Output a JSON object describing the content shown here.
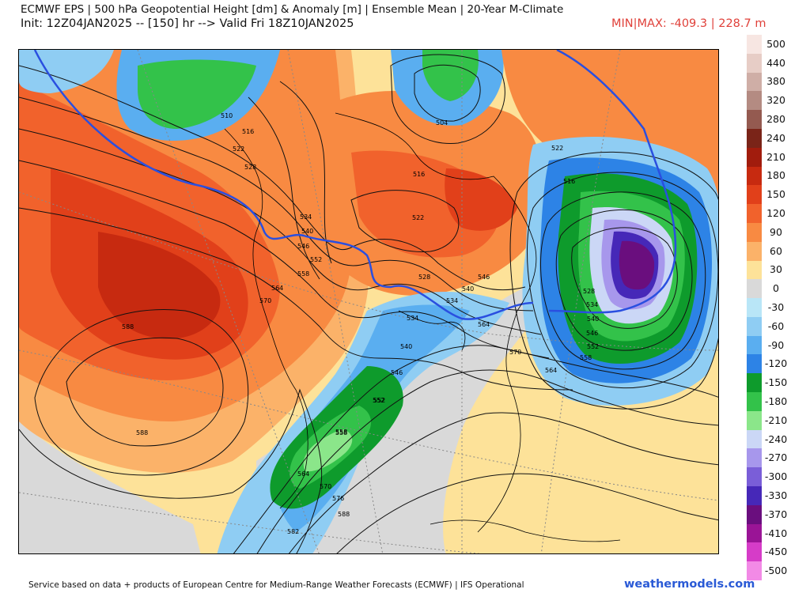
{
  "header": {
    "title": "ECMWF EPS | 500 hPa Geopotential Height [dm] & Anomaly [m] | Ensemble Mean | 20-Year M-Climate",
    "init_line": "Init: 12Z04JAN2025 -- [150] hr --> Valid Fri 18Z10JAN2025",
    "minmax": "MIN|MAX: -409.3 | 228.7 m"
  },
  "legend": {
    "items": [
      {
        "label": "500",
        "color": "#f7e6e2"
      },
      {
        "label": "440",
        "color": "#e7cdc6"
      },
      {
        "label": "380",
        "color": "#cfaea6"
      },
      {
        "label": "320",
        "color": "#b48b82"
      },
      {
        "label": "280",
        "color": "#945a50"
      },
      {
        "label": "240",
        "color": "#7a2418"
      },
      {
        "label": "210",
        "color": "#a11c0d"
      },
      {
        "label": "180",
        "color": "#c72a10"
      },
      {
        "label": "150",
        "color": "#e1401a"
      },
      {
        "label": "120",
        "color": "#f1622c"
      },
      {
        "label": "90",
        "color": "#f88a42"
      },
      {
        "label": "60",
        "color": "#fbb269"
      },
      {
        "label": "30",
        "color": "#fde299"
      },
      {
        "label": "0",
        "color": "#d9d9d9"
      },
      {
        "label": "-30",
        "color": "#b9e6f7"
      },
      {
        "label": "-60",
        "color": "#8fcdf3"
      },
      {
        "label": "-90",
        "color": "#5aaef0"
      },
      {
        "label": "-120",
        "color": "#2d83e6"
      },
      {
        "label": "-150",
        "color": "#0e9b2c"
      },
      {
        "label": "-180",
        "color": "#33c24a"
      },
      {
        "label": "-210",
        "color": "#8be68a"
      },
      {
        "label": "-240",
        "color": "#cbd7f6"
      },
      {
        "label": "-270",
        "color": "#a797ec"
      },
      {
        "label": "-300",
        "color": "#7a5ed8"
      },
      {
        "label": "-330",
        "color": "#4628b8"
      },
      {
        "label": "-370",
        "color": "#6a0e7e"
      },
      {
        "label": "-410",
        "color": "#9a1496"
      },
      {
        "label": "-450",
        "color": "#d63cc8"
      },
      {
        "label": "-500",
        "color": "#f28ae6"
      }
    ]
  },
  "contours": {
    "labels": [
      "510",
      "516",
      "522",
      "528",
      "534",
      "540",
      "546",
      "552",
      "558",
      "564",
      "570",
      "588",
      "588",
      "504",
      "516",
      "522",
      "528",
      "534",
      "540",
      "546",
      "552",
      "558",
      "564",
      "570",
      "576",
      "582",
      "588",
      "522",
      "516",
      "528",
      "534",
      "540",
      "546",
      "552",
      "558",
      "564",
      "552",
      "558",
      "564",
      "570",
      "534",
      "540",
      "546"
    ]
  },
  "footer": {
    "attribution": "Service based on data + products of European Centre for Medium-Range Weather Forecasts (ECMWF) | IFS Operational",
    "brand": "weathermodels.com"
  },
  "colors": {
    "accent_minmax": "#e0413a",
    "brand": "#2a5ad6"
  }
}
